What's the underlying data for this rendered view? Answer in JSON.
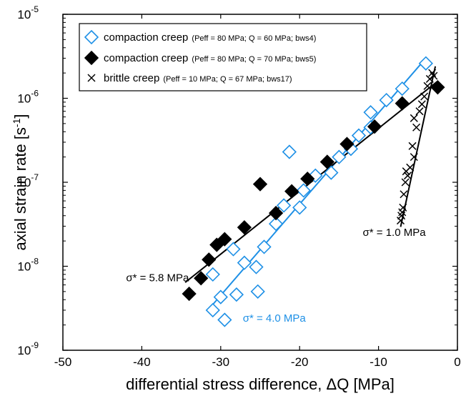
{
  "chart_data": {
    "type": "scatter",
    "xlabel": "differential stress difference, ΔQ  [MPa]",
    "ylabel": "axial strain rate [s-1]",
    "ylabel_main": "axial strain rate [s",
    "ylabel_sup": "-1",
    "ylabel_end": "]",
    "xlim": [
      -50,
      0
    ],
    "ylim": [
      1e-09,
      1e-05
    ],
    "yscale": "log",
    "grid": false,
    "legend_position": "top-left",
    "x_ticks": [
      {
        "value": -50,
        "label": "-50"
      },
      {
        "value": -40,
        "label": "-40"
      },
      {
        "value": -30,
        "label": "-30"
      },
      {
        "value": -20,
        "label": "-20"
      },
      {
        "value": -10,
        "label": "-10"
      },
      {
        "value": 0,
        "label": "0"
      }
    ],
    "y_ticks": [
      {
        "value": 1e-09,
        "base": "10",
        "exp": "-9"
      },
      {
        "value": 1e-08,
        "base": "10",
        "exp": "-8"
      },
      {
        "value": 1e-07,
        "base": "10",
        "exp": "-7"
      },
      {
        "value": 1e-06,
        "base": "10",
        "exp": "-6"
      },
      {
        "value": 1e-05,
        "base": "10",
        "exp": "-5"
      }
    ],
    "series": [
      {
        "name": "compaction creep",
        "detail": "(Peff = 80 MPa; Q = 60 MPa; bws4)",
        "marker": "diamond-open",
        "color": "#1e90e6",
        "points": [
          [
            -31,
            3e-09
          ],
          [
            -29.5,
            2.3e-09
          ],
          [
            -30,
            4.3e-09
          ],
          [
            -28,
            4.6e-09
          ],
          [
            -25.3,
            5e-09
          ],
          [
            -31,
            8e-09
          ],
          [
            -27,
            1.1e-08
          ],
          [
            -25.5,
            9.8e-09
          ],
          [
            -28.4,
            1.6e-08
          ],
          [
            -24.5,
            1.7e-08
          ],
          [
            -23,
            3.2e-08
          ],
          [
            -22,
            5.3e-08
          ],
          [
            -20,
            5e-08
          ],
          [
            -19.5,
            8e-08
          ],
          [
            -18,
            1.2e-07
          ],
          [
            -16,
            1.3e-07
          ],
          [
            -15,
            2e-07
          ],
          [
            -13.5,
            2.5e-07
          ],
          [
            -12.5,
            3.6e-07
          ],
          [
            -11,
            4.5e-07
          ],
          [
            -11,
            6.8e-07
          ],
          [
            -9,
            9.5e-07
          ],
          [
            -7,
            1.3e-06
          ],
          [
            -4,
            2.6e-06
          ],
          [
            -21.3,
            2.3e-07
          ]
        ],
        "fit": {
          "x0": -31,
          "x1": -4,
          "y_at_x1": 3e-06,
          "slope_decades_per_mpa": 0.1086
        }
      },
      {
        "name": "compaction creep",
        "detail": "(Peff = 80 MPa; Q = 70 MPa; bws5)",
        "marker": "diamond-filled",
        "color": "#000000",
        "points": [
          [
            -34,
            4.7e-09
          ],
          [
            -32.5,
            7.2e-09
          ],
          [
            -31.5,
            1.2e-08
          ],
          [
            -30.5,
            1.8e-08
          ],
          [
            -29.5,
            2.1e-08
          ],
          [
            -27,
            2.9e-08
          ],
          [
            -23,
            4.3e-08
          ],
          [
            -25,
            9.5e-08
          ],
          [
            -21,
            7.8e-08
          ],
          [
            -19,
            1.1e-07
          ],
          [
            -16.5,
            1.75e-07
          ],
          [
            -14,
            2.85e-07
          ],
          [
            -10.5,
            4.6e-07
          ],
          [
            -7,
            8.7e-07
          ],
          [
            -2.5,
            1.35e-06
          ]
        ],
        "fit": {
          "x0": -34.5,
          "x1": -2.5,
          "y_at_x1": 1.6e-06,
          "slope_decades_per_mpa": 0.0749
        }
      },
      {
        "name": "brittle creep",
        "detail": "(Peff = 10 MPa; Q = 67 MPa; bws17)",
        "marker": "cross",
        "color": "#000000",
        "points": [
          [
            -7.2,
            3.5e-08
          ],
          [
            -7.1,
            4e-08
          ],
          [
            -7.0,
            4.4e-08
          ],
          [
            -6.9,
            5e-08
          ],
          [
            -6.8,
            7.2e-08
          ],
          [
            -6.6,
            1e-07
          ],
          [
            -6.5,
            1.35e-07
          ],
          [
            -6.3,
            1.2e-07
          ],
          [
            -6.0,
            1.5e-07
          ],
          [
            -5.5,
            2e-07
          ],
          [
            -5.7,
            2.7e-07
          ],
          [
            -5.2,
            4.5e-07
          ],
          [
            -5.5,
            5.8e-07
          ],
          [
            -4.8,
            7e-07
          ],
          [
            -4.5,
            8.5e-07
          ],
          [
            -4.2,
            1.05e-06
          ],
          [
            -3.8,
            1.4e-06
          ],
          [
            -3.5,
            1.7e-06
          ],
          [
            -3.2,
            2e-06
          ],
          [
            -3.0,
            1.85e-06
          ]
        ],
        "fit": {
          "x0": -7.2,
          "x1": -2.8,
          "y_at_x1": 2.4e-06,
          "slope_decades_per_mpa": 0.4343
        }
      }
    ],
    "annotations": [
      {
        "text": "σ* = 5.8 MPa",
        "color": "#000000",
        "anchor_x": -42.0,
        "anchor_y": 6.6e-09
      },
      {
        "text": "σ* = 4.0 MPa",
        "color": "#1e90e6",
        "anchor_x": -27.2,
        "anchor_y": 2.2e-09
      },
      {
        "text": "σ* = 1.0 MPa",
        "color": "#000000",
        "anchor_x": -12.0,
        "anchor_y": 2.3e-08
      }
    ]
  }
}
